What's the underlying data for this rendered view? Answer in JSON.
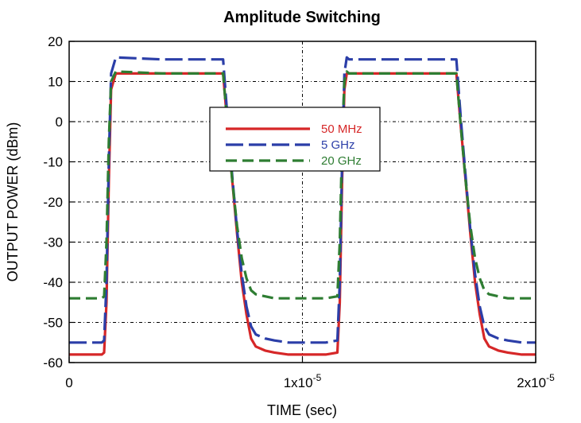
{
  "chart_data": {
    "type": "line",
    "title": "Amplitude Switching",
    "xlabel": "TIME (sec)",
    "ylabel": "OUTPUT POWER (dBm)",
    "xlim": [
      0,
      2e-05
    ],
    "ylim": [
      -60,
      20
    ],
    "grid": true,
    "legend_position": "center",
    "x_ticks": [
      {
        "value": 0,
        "mantissa": "0",
        "exp": ""
      },
      {
        "value": 1e-05,
        "mantissa": "1x10",
        "exp": "-5"
      },
      {
        "value": 2e-05,
        "mantissa": "2x10",
        "exp": "-5"
      }
    ],
    "y_ticks": [
      {
        "value": 20,
        "label": "20"
      },
      {
        "value": 10,
        "label": "10"
      },
      {
        "value": 0,
        "label": "0"
      },
      {
        "value": -10,
        "label": "-10"
      },
      {
        "value": -20,
        "label": "-20"
      },
      {
        "value": -30,
        "label": "-30"
      },
      {
        "value": -40,
        "label": "-40"
      },
      {
        "value": -50,
        "label": "-50"
      },
      {
        "value": -60,
        "label": "-60"
      }
    ],
    "series": [
      {
        "name": "50 MHz",
        "color": "#d62728",
        "dash": "solid",
        "x": [
          0,
          1.4e-06,
          1.5e-06,
          1.6e-06,
          1.7e-06,
          1.8e-06,
          2e-06,
          4e-06,
          6.6e-06,
          6.8e-06,
          7e-06,
          7.2e-06,
          7.4e-06,
          7.6e-06,
          7.8e-06,
          8e-06,
          8.4e-06,
          8.8e-06,
          9.4e-06,
          1.1e-05,
          1.15e-05,
          1.16e-05,
          1.17e-05,
          1.18e-05,
          1.19e-05,
          1.2e-05,
          1.4e-05,
          1.66e-05,
          1.68e-05,
          1.7e-05,
          1.72e-05,
          1.74e-05,
          1.76e-05,
          1.78e-05,
          1.8e-05,
          1.84e-05,
          1.88e-05,
          1.94e-05,
          2e-05
        ],
        "y": [
          -58,
          -58,
          -57.5,
          -45,
          -15,
          8,
          12,
          12,
          12,
          -2,
          -15,
          -28,
          -40,
          -48,
          -54,
          -56,
          -57,
          -57.5,
          -58,
          -58,
          -57.5,
          -45,
          -15,
          8,
          12,
          12,
          12,
          12,
          -2,
          -15,
          -28,
          -40,
          -48,
          -54,
          -56,
          -57,
          -57.5,
          -58,
          -58
        ]
      },
      {
        "name": "5 GHz",
        "color": "#2b3ea8",
        "dash": "long-dash",
        "x": [
          0,
          1.4e-06,
          1.5e-06,
          1.6e-06,
          1.7e-06,
          1.8e-06,
          2e-06,
          4e-06,
          6.6e-06,
          6.8e-06,
          7e-06,
          7.2e-06,
          7.4e-06,
          7.6e-06,
          7.8e-06,
          8e-06,
          8.4e-06,
          8.8e-06,
          9.4e-06,
          1.1e-05,
          1.15e-05,
          1.16e-05,
          1.17e-05,
          1.18e-05,
          1.19e-05,
          1.2e-05,
          1.4e-05,
          1.66e-05,
          1.68e-05,
          1.7e-05,
          1.72e-05,
          1.74e-05,
          1.76e-05,
          1.78e-05,
          1.8e-05,
          1.84e-05,
          1.88e-05,
          1.94e-05,
          2e-05
        ],
        "y": [
          -55,
          -55,
          -54.5,
          -40,
          -10,
          12,
          16,
          15.5,
          15.5,
          0,
          -14,
          -27,
          -38,
          -46,
          -51,
          -53,
          -54,
          -54.5,
          -55,
          -55,
          -54.5,
          -40,
          -10,
          12,
          16,
          15.5,
          15.5,
          15.5,
          0,
          -14,
          -27,
          -38,
          -46,
          -51,
          -53,
          -54,
          -54.5,
          -55,
          -55
        ]
      },
      {
        "name": "20 GHz",
        "color": "#2e7d32",
        "dash": "dash",
        "x": [
          0,
          1.4e-06,
          1.5e-06,
          1.6e-06,
          1.7e-06,
          1.8e-06,
          2e-06,
          4e-06,
          6.6e-06,
          6.8e-06,
          7e-06,
          7.2e-06,
          7.4e-06,
          7.6e-06,
          7.8e-06,
          8e-06,
          8.4e-06,
          8.8e-06,
          9.4e-06,
          1.1e-05,
          1.15e-05,
          1.16e-05,
          1.17e-05,
          1.18e-05,
          1.19e-05,
          1.2e-05,
          1.4e-05,
          1.66e-05,
          1.68e-05,
          1.7e-05,
          1.72e-05,
          1.74e-05,
          1.76e-05,
          1.78e-05,
          1.8e-05,
          1.84e-05,
          1.88e-05,
          1.94e-05,
          2e-05
        ],
        "y": [
          -44,
          -44,
          -43.5,
          -30,
          -5,
          10,
          12.5,
          12,
          12,
          -2,
          -15,
          -26,
          -34,
          -39,
          -42,
          -43,
          -43.5,
          -44,
          -44,
          -44,
          -43.5,
          -30,
          -5,
          10,
          12.5,
          12,
          12,
          12,
          -2,
          -15,
          -26,
          -34,
          -39,
          -42,
          -43,
          -43.5,
          -44,
          -44,
          -44
        ]
      }
    ]
  }
}
